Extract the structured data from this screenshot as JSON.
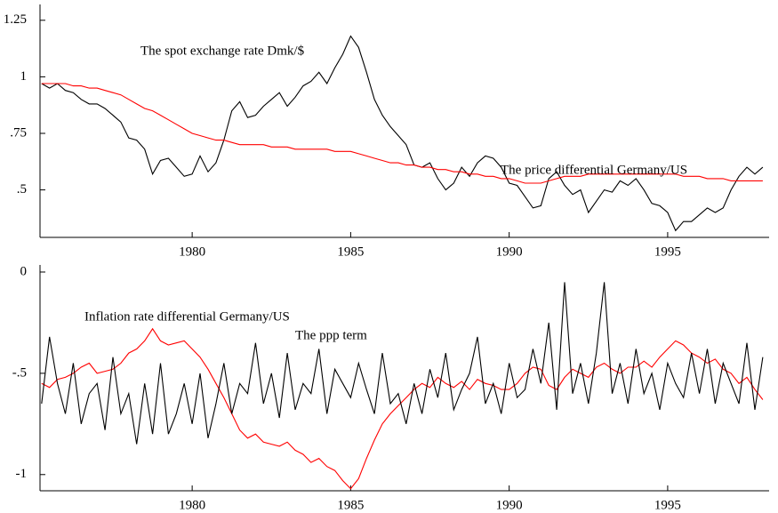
{
  "chart_data": [
    {
      "type": "line",
      "x": [
        1975.25,
        1975.5,
        1975.75,
        1976,
        1976.25,
        1976.5,
        1976.75,
        1977,
        1977.25,
        1977.5,
        1977.75,
        1978,
        1978.25,
        1978.5,
        1978.75,
        1979,
        1979.25,
        1979.5,
        1979.75,
        1980,
        1980.25,
        1980.5,
        1980.75,
        1981,
        1981.25,
        1981.5,
        1981.75,
        1982,
        1982.25,
        1982.5,
        1982.75,
        1983,
        1983.25,
        1983.5,
        1983.75,
        1984,
        1984.25,
        1984.5,
        1984.75,
        1985,
        1985.25,
        1985.5,
        1985.75,
        1986,
        1986.25,
        1986.5,
        1986.75,
        1987,
        1987.25,
        1987.5,
        1987.75,
        1988,
        1988.25,
        1988.5,
        1988.75,
        1989,
        1989.25,
        1989.5,
        1989.75,
        1990,
        1990.25,
        1990.5,
        1990.75,
        1991,
        1991.25,
        1991.5,
        1991.75,
        1992,
        1992.25,
        1992.5,
        1992.75,
        1993,
        1993.25,
        1993.5,
        1993.75,
        1994,
        1994.25,
        1994.5,
        1994.75,
        1995,
        1995.25,
        1995.5,
        1995.75,
        1996,
        1996.25,
        1996.5,
        1996.75,
        1997,
        1997.25,
        1997.5,
        1997.75,
        1998
      ],
      "series": [
        {
          "name": "The spot exchange rate  Dmk/$",
          "color": "#000000",
          "values": [
            0.97,
            0.95,
            0.97,
            0.94,
            0.93,
            0.9,
            0.88,
            0.88,
            0.86,
            0.83,
            0.8,
            0.73,
            0.72,
            0.68,
            0.57,
            0.63,
            0.64,
            0.6,
            0.56,
            0.57,
            0.65,
            0.58,
            0.62,
            0.72,
            0.85,
            0.89,
            0.82,
            0.83,
            0.87,
            0.9,
            0.93,
            0.87,
            0.91,
            0.96,
            0.98,
            1.02,
            0.97,
            1.04,
            1.1,
            1.18,
            1.13,
            1.02,
            0.9,
            0.83,
            0.78,
            0.74,
            0.7,
            0.61,
            0.6,
            0.62,
            0.55,
            0.5,
            0.53,
            0.6,
            0.56,
            0.62,
            0.65,
            0.64,
            0.6,
            0.53,
            0.52,
            0.47,
            0.42,
            0.43,
            0.55,
            0.58,
            0.52,
            0.48,
            0.5,
            0.4,
            0.45,
            0.5,
            0.49,
            0.54,
            0.52,
            0.55,
            0.5,
            0.44,
            0.43,
            0.4,
            0.32,
            0.36,
            0.36,
            0.39,
            0.42,
            0.4,
            0.42,
            0.5,
            0.56,
            0.6,
            0.57,
            0.6
          ]
        },
        {
          "name": "The price differential Germany/US",
          "color": "#ff0000",
          "values": [
            0.97,
            0.97,
            0.97,
            0.97,
            0.96,
            0.96,
            0.95,
            0.95,
            0.94,
            0.93,
            0.92,
            0.9,
            0.88,
            0.86,
            0.85,
            0.83,
            0.81,
            0.79,
            0.77,
            0.75,
            0.74,
            0.73,
            0.72,
            0.72,
            0.71,
            0.7,
            0.7,
            0.7,
            0.7,
            0.69,
            0.69,
            0.69,
            0.68,
            0.68,
            0.68,
            0.68,
            0.68,
            0.67,
            0.67,
            0.67,
            0.66,
            0.65,
            0.64,
            0.63,
            0.62,
            0.62,
            0.61,
            0.61,
            0.6,
            0.6,
            0.59,
            0.59,
            0.58,
            0.58,
            0.57,
            0.57,
            0.56,
            0.56,
            0.55,
            0.55,
            0.54,
            0.53,
            0.53,
            0.53,
            0.54,
            0.55,
            0.56,
            0.56,
            0.56,
            0.57,
            0.57,
            0.57,
            0.57,
            0.57,
            0.57,
            0.57,
            0.57,
            0.57,
            0.57,
            0.57,
            0.57,
            0.56,
            0.56,
            0.56,
            0.55,
            0.55,
            0.55,
            0.54,
            0.54,
            0.54,
            0.54,
            0.54
          ]
        }
      ],
      "xlim": [
        1975.2,
        1998.2
      ],
      "xticks": [
        1980,
        1985,
        1990,
        1995
      ],
      "ylim": [
        0.29,
        1.32
      ],
      "yticks": [
        {
          "value": 1.25,
          "label": "1.25"
        },
        1,
        {
          "value": 0.75,
          "label": ".75"
        },
        {
          "value": 0.5,
          "label": ".5"
        }
      ]
    },
    {
      "type": "line",
      "x": [
        1975.25,
        1975.5,
        1975.75,
        1976,
        1976.25,
        1976.5,
        1976.75,
        1977,
        1977.25,
        1977.5,
        1977.75,
        1978,
        1978.25,
        1978.5,
        1978.75,
        1979,
        1979.25,
        1979.5,
        1979.75,
        1980,
        1980.25,
        1980.5,
        1980.75,
        1981,
        1981.25,
        1981.5,
        1981.75,
        1982,
        1982.25,
        1982.5,
        1982.75,
        1983,
        1983.25,
        1983.5,
        1983.75,
        1984,
        1984.25,
        1984.5,
        1984.75,
        1985,
        1985.25,
        1985.5,
        1985.75,
        1986,
        1986.25,
        1986.5,
        1986.75,
        1987,
        1987.25,
        1987.5,
        1987.75,
        1988,
        1988.25,
        1988.5,
        1988.75,
        1989,
        1989.25,
        1989.5,
        1989.75,
        1990,
        1990.25,
        1990.5,
        1990.75,
        1991,
        1991.25,
        1991.5,
        1991.75,
        1992,
        1992.25,
        1992.5,
        1992.75,
        1993,
        1993.25,
        1993.5,
        1993.75,
        1994,
        1994.25,
        1994.5,
        1994.75,
        1995,
        1995.25,
        1995.5,
        1995.75,
        1996,
        1996.25,
        1996.5,
        1996.75,
        1997,
        1997.25,
        1997.5,
        1997.75,
        1998
      ],
      "series": [
        {
          "name": "The ppp term",
          "color": "#ff0000",
          "values": [
            -0.55,
            -0.57,
            -0.53,
            -0.52,
            -0.5,
            -0.47,
            -0.45,
            -0.5,
            -0.49,
            -0.48,
            -0.45,
            -0.4,
            -0.38,
            -0.34,
            -0.28,
            -0.34,
            -0.36,
            -0.35,
            -0.34,
            -0.38,
            -0.42,
            -0.48,
            -0.55,
            -0.62,
            -0.7,
            -0.78,
            -0.82,
            -0.8,
            -0.84,
            -0.85,
            -0.86,
            -0.84,
            -0.88,
            -0.9,
            -0.94,
            -0.92,
            -0.96,
            -0.98,
            -1.03,
            -1.07,
            -1.02,
            -0.92,
            -0.83,
            -0.75,
            -0.7,
            -0.66,
            -0.62,
            -0.58,
            -0.55,
            -0.57,
            -0.52,
            -0.55,
            -0.57,
            -0.54,
            -0.58,
            -0.53,
            -0.55,
            -0.56,
            -0.58,
            -0.58,
            -0.55,
            -0.5,
            -0.47,
            -0.48,
            -0.56,
            -0.58,
            -0.52,
            -0.48,
            -0.5,
            -0.52,
            -0.47,
            -0.45,
            -0.48,
            -0.5,
            -0.47,
            -0.47,
            -0.44,
            -0.47,
            -0.42,
            -0.38,
            -0.34,
            -0.36,
            -0.4,
            -0.42,
            -0.45,
            -0.43,
            -0.48,
            -0.5,
            -0.55,
            -0.52,
            -0.58,
            -0.63
          ]
        },
        {
          "name": "Inflation rate differential Germany/US",
          "color": "#000000",
          "values": [
            -0.65,
            -0.32,
            -0.55,
            -0.7,
            -0.45,
            -0.75,
            -0.6,
            -0.55,
            -0.78,
            -0.42,
            -0.7,
            -0.6,
            -0.85,
            -0.55,
            -0.8,
            -0.45,
            -0.8,
            -0.7,
            -0.55,
            -0.75,
            -0.5,
            -0.82,
            -0.65,
            -0.45,
            -0.7,
            -0.55,
            -0.6,
            -0.35,
            -0.65,
            -0.5,
            -0.72,
            -0.4,
            -0.68,
            -0.55,
            -0.6,
            -0.38,
            -0.7,
            -0.48,
            -0.55,
            -0.62,
            -0.45,
            -0.58,
            -0.7,
            -0.4,
            -0.65,
            -0.6,
            -0.75,
            -0.55,
            -0.7,
            -0.48,
            -0.62,
            -0.4,
            -0.68,
            -0.58,
            -0.5,
            -0.32,
            -0.65,
            -0.55,
            -0.7,
            -0.45,
            -0.62,
            -0.58,
            -0.38,
            -0.55,
            -0.25,
            -0.68,
            -0.05,
            -0.6,
            -0.45,
            -0.65,
            -0.4,
            -0.05,
            -0.6,
            -0.45,
            -0.65,
            -0.38,
            -0.6,
            -0.5,
            -0.68,
            -0.45,
            -0.55,
            -0.62,
            -0.4,
            -0.6,
            -0.38,
            -0.65,
            -0.45,
            -0.55,
            -0.65,
            -0.35,
            -0.68,
            -0.42
          ]
        }
      ],
      "xlim": [
        1975.2,
        1998.2
      ],
      "xticks": [
        1980,
        1985,
        1990,
        1995
      ],
      "ylim": [
        -1.08,
        0.035
      ],
      "yticks": [
        0,
        {
          "value": -0.5,
          "label": "-.5"
        },
        -1
      ]
    }
  ]
}
